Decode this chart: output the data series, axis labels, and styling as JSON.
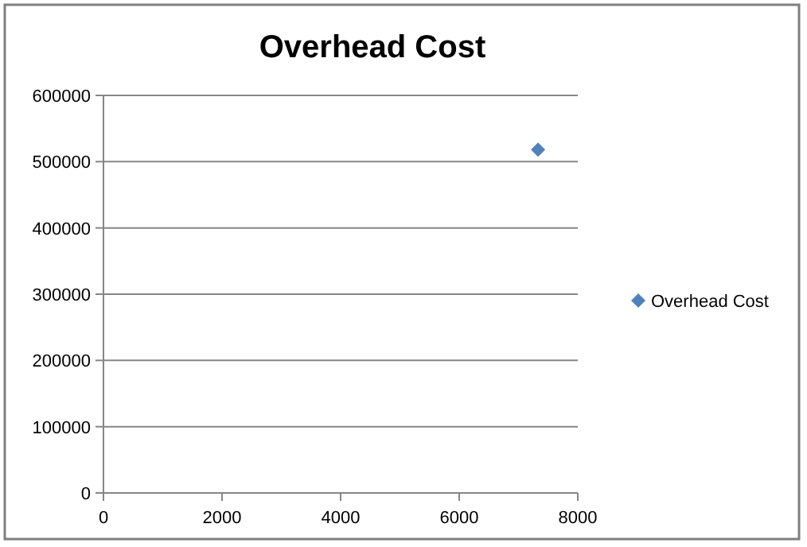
{
  "chart_data": {
    "type": "scatter",
    "title": "Overhead Cost",
    "series": [
      {
        "name": "Overhead Cost",
        "color": "#4f81bd",
        "x": [
          7330
        ],
        "values": [
          518000
        ]
      }
    ],
    "xlim": [
      0,
      8000
    ],
    "xticks": [
      0,
      2000,
      4000,
      6000,
      8000
    ],
    "ylim": [
      0,
      600000
    ],
    "yticks": [
      0,
      100000,
      200000,
      300000,
      400000,
      500000,
      600000
    ],
    "grid": "y",
    "legend": "right",
    "marker": "diamond"
  }
}
